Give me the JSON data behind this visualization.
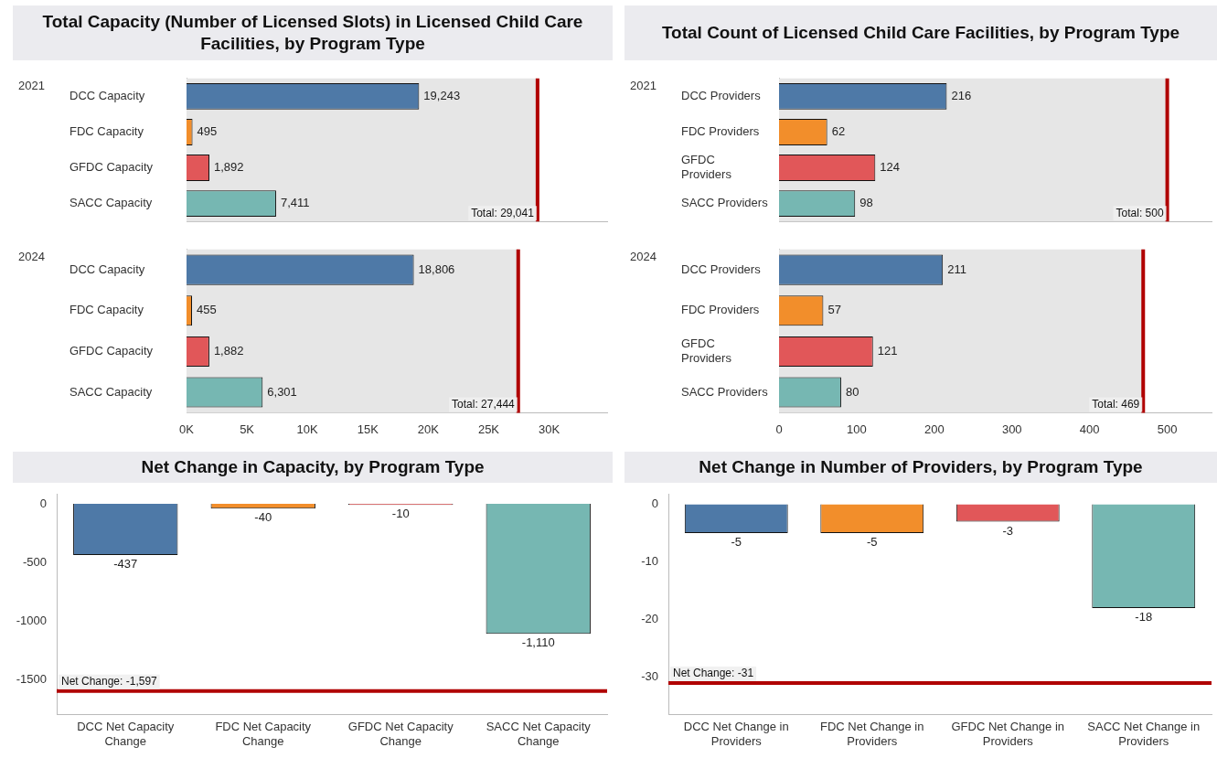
{
  "chart_data": [
    {
      "type": "bar",
      "orientation": "horizontal",
      "title": "Total Capacity (Number of Licensed Slots) in Licensed Child Care Facilities, by Program Type",
      "ylabel": "2021",
      "categories": [
        "DCC Capacity",
        "FDC Capacity",
        "GFDC Capacity",
        "SACC Capacity"
      ],
      "values": [
        19243,
        495,
        1892,
        7411
      ],
      "colors": [
        "#4e79a7",
        "#f28e2b",
        "#e15759",
        "#76b7b2"
      ],
      "value_labels": [
        "19,243",
        "495",
        "1,892",
        "7,411"
      ],
      "xlim": [
        0,
        34800
      ],
      "tick_labels": "y",
      "grid": false,
      "ref_lines": [
        {
          "axis": "x",
          "value": 29041,
          "label": "Total: 29,041",
          "color": "#b00000"
        }
      ],
      "bands": [
        {
          "axis": "x",
          "from": 0,
          "to": 29041,
          "color": "#e6e6e6"
        }
      ]
    },
    {
      "type": "bar",
      "orientation": "horizontal",
      "ylabel": "2024",
      "categories": [
        "DCC Capacity",
        "FDC Capacity",
        "GFDC Capacity",
        "SACC Capacity"
      ],
      "values": [
        18806,
        455,
        1882,
        6301
      ],
      "colors": [
        "#4e79a7",
        "#f28e2b",
        "#e15759",
        "#76b7b2"
      ],
      "value_labels": [
        "18,806",
        "455",
        "1,882",
        "6,301"
      ],
      "xlim": [
        0,
        34800
      ],
      "xticks": [
        {
          "value": 0,
          "label": "0K"
        },
        {
          "value": 5000,
          "label": "5K"
        },
        {
          "value": 10000,
          "label": "10K"
        },
        {
          "value": 15000,
          "label": "15K"
        },
        {
          "value": 20000,
          "label": "20K"
        },
        {
          "value": 25000,
          "label": "25K"
        },
        {
          "value": 30000,
          "label": "30K"
        }
      ],
      "grid": false,
      "ref_lines": [
        {
          "axis": "x",
          "value": 27444,
          "label": "Total: 27,444",
          "color": "#b00000"
        }
      ],
      "bands": [
        {
          "axis": "x",
          "from": 0,
          "to": 27444,
          "color": "#e6e6e6"
        }
      ]
    },
    {
      "type": "bar",
      "orientation": "horizontal",
      "title": "Total Count of Licensed Child Care Facilities, by Program Type",
      "ylabel": "2021",
      "categories": [
        "DCC Providers",
        "FDC Providers",
        "GFDC Providers",
        "SACC Providers"
      ],
      "values": [
        216,
        62,
        124,
        98
      ],
      "colors": [
        "#4e79a7",
        "#f28e2b",
        "#e15759",
        "#76b7b2"
      ],
      "data_labels": true,
      "xlim": [
        0,
        557
      ],
      "tick_labels": "y",
      "grid": false,
      "ref_lines": [
        {
          "axis": "x",
          "value": 500,
          "label": "Total: 500",
          "color": "#b00000"
        }
      ],
      "bands": [
        {
          "axis": "x",
          "from": 0,
          "to": 500,
          "color": "#e6e6e6"
        }
      ]
    },
    {
      "type": "bar",
      "orientation": "horizontal",
      "ylabel": "2024",
      "categories": [
        "DCC Providers",
        "FDC Providers",
        "GFDC Providers",
        "SACC Providers"
      ],
      "values": [
        211,
        57,
        121,
        80
      ],
      "colors": [
        "#4e79a7",
        "#f28e2b",
        "#e15759",
        "#76b7b2"
      ],
      "data_labels": true,
      "xlim": [
        0,
        557
      ],
      "xticks": [
        0,
        100,
        200,
        300,
        400,
        500
      ],
      "grid": false,
      "ref_lines": [
        {
          "axis": "x",
          "value": 469,
          "label": "Total: 469",
          "color": "#b00000"
        }
      ],
      "bands": [
        {
          "axis": "x",
          "from": 0,
          "to": 469,
          "color": "#e6e6e6"
        }
      ]
    },
    {
      "type": "bar",
      "title": "Net Change in Capacity, by Program Type",
      "categories": [
        "DCC Net Capacity Change",
        "FDC Net Capacity Change",
        "GFDC Net Capacity Change",
        "SACC Net Capacity Change"
      ],
      "values": [
        -437,
        -40,
        -10,
        -1110
      ],
      "colors": [
        "#4e79a7",
        "#f28e2b",
        "#e15759",
        "#76b7b2"
      ],
      "value_labels": [
        "-437",
        "-40",
        "-10",
        "-1,110"
      ],
      "ylim": [
        -1800,
        80
      ],
      "yticks": [
        0,
        -500,
        -1000,
        -1500
      ],
      "grid": false,
      "ref_lines": [
        {
          "axis": "y",
          "value": -1597,
          "label": "Net Change: -1,597",
          "color": "#b00000"
        }
      ]
    },
    {
      "type": "bar",
      "title": "Net Change in Number of Providers, by Program Type",
      "categories": [
        "DCC Net Change in Providers",
        "FDC Net Change in Providers",
        "GFDC Net Change in Providers",
        "SACC Net Change in Providers"
      ],
      "values": [
        -5,
        -5,
        -3,
        -18
      ],
      "colors": [
        "#4e79a7",
        "#f28e2b",
        "#e15759",
        "#76b7b2"
      ],
      "data_labels": true,
      "ylim": [
        -36.5,
        1.7
      ],
      "yticks": [
        0,
        -10,
        -20,
        -30
      ],
      "grid": false,
      "ref_lines": [
        {
          "axis": "y",
          "value": -31,
          "label": "Net Change: -31",
          "color": "#b00000"
        }
      ]
    }
  ]
}
